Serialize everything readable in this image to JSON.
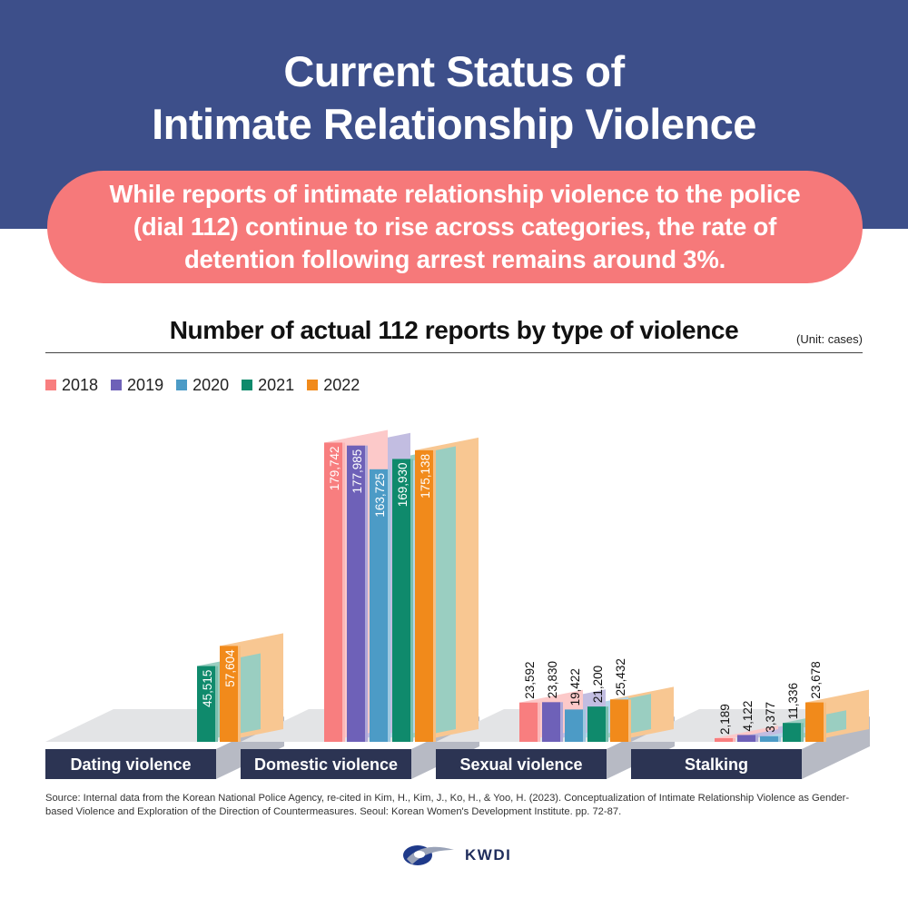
{
  "header": {
    "title_line1": "Current Status of",
    "title_line2": "Intimate Relationship Violence",
    "subtitle": "While reports of intimate relationship violence to the police (dial 112) continue to rise across categories, the rate of detention following arrest remains around 3%."
  },
  "chart_data": {
    "type": "bar",
    "title": "Number of actual 112 reports by type of violence",
    "unit": "(Unit: cases)",
    "categories": [
      "Dating violence",
      "Domestic violence",
      "Sexual violence",
      "Stalking"
    ],
    "series": [
      {
        "name": "2018",
        "color": "#f87e7f",
        "values": [
          null,
          179742,
          23592,
          2189
        ]
      },
      {
        "name": "2019",
        "color": "#6e61b8",
        "values": [
          null,
          177985,
          23830,
          4122
        ]
      },
      {
        "name": "2020",
        "color": "#4c9bc6",
        "values": [
          null,
          163725,
          19422,
          3377
        ]
      },
      {
        "name": "2021",
        "color": "#0f8a6c",
        "values": [
          45515,
          169930,
          21200,
          11336
        ]
      },
      {
        "name": "2022",
        "color": "#f18a1b",
        "values": [
          57604,
          175138,
          25432,
          23678
        ]
      }
    ],
    "data_labels": [
      [
        null,
        "179,742",
        "23,592",
        "2,189"
      ],
      [
        null,
        "177,985",
        "23,830",
        "4,122"
      ],
      [
        null,
        "163,725",
        "19,422",
        "3,377"
      ],
      [
        "45,515",
        "169,930",
        "21,200",
        "11,336"
      ],
      [
        "57,604",
        "175,138",
        "25,432",
        "23,678"
      ]
    ],
    "ylim": [
      0,
      180000
    ],
    "legend_position": "top-left",
    "grid": false
  },
  "source": "Source: Internal data from the Korean National Police Agency, re-cited in Kim, H., Kim, J., Ko, H., & Yoo, H. (2023). Conceptualization of Intimate Relationship Violence as Gender-based Violence and Exploration of the Direction of Countermeasures. Seoul: Korean Women's Development Institute. pp. 72-87.",
  "logo": {
    "text": "KWDI",
    "icon": "kwdi-logo-icon"
  }
}
